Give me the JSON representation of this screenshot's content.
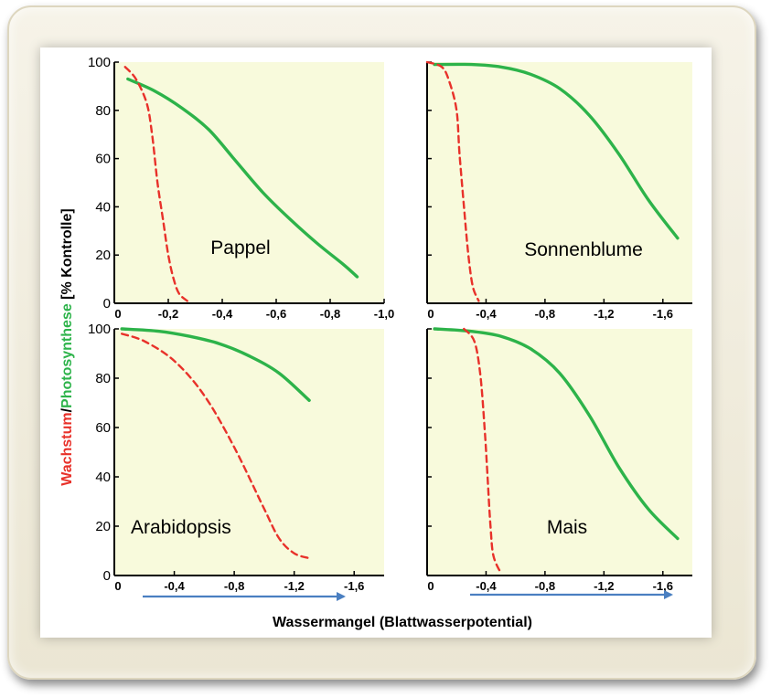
{
  "figure": {
    "ylabel_parts": [
      {
        "text": "Wachstum",
        "color": "#e8312a"
      },
      {
        "text": "/",
        "color": "#000000"
      },
      {
        "text": "Photosynthese",
        "color": "#2db34a"
      },
      {
        "text": " [% Kontrolle]",
        "color": "#000000"
      }
    ],
    "xlabel": "Wassermangel  (Blattwasserpotential)"
  },
  "colors": {
    "panel_bg": "#f8fadc",
    "photosynthese": "#2db34a",
    "wachstum": "#e8312a",
    "arrow": "#4a7fc1"
  },
  "chart_data": [
    {
      "type": "line",
      "label": "Pappel",
      "xlim": [
        0,
        -1.0
      ],
      "ylim": [
        0,
        100
      ],
      "xticks": [
        -0.2,
        -0.4,
        -0.6,
        -0.8,
        -1.0
      ],
      "xtick_labels": [
        "-0,2",
        "-0,4",
        "-0,6",
        "-0,8",
        "-1,0"
      ],
      "x_origin_label": "0",
      "yticks": [
        0,
        20,
        40,
        60,
        80,
        100
      ],
      "series": [
        {
          "key": "photosynthese",
          "style": "solid",
          "x": [
            -0.05,
            -0.15,
            -0.25,
            -0.35,
            -0.45,
            -0.55,
            -0.65,
            -0.75,
            -0.85,
            -0.9
          ],
          "y": [
            93,
            88,
            81,
            72,
            59,
            46,
            35,
            25,
            16,
            11
          ]
        },
        {
          "key": "wachstum",
          "style": "dashed",
          "x": [
            -0.04,
            -0.08,
            -0.12,
            -0.14,
            -0.16,
            -0.18,
            -0.2,
            -0.22,
            -0.24,
            -0.27
          ],
          "y": [
            98,
            93,
            83,
            70,
            50,
            35,
            20,
            10,
            4,
            1
          ]
        }
      ]
    },
    {
      "type": "line",
      "label": "Sonnenblume",
      "xlim": [
        0,
        -1.8
      ],
      "ylim": [
        0,
        100
      ],
      "xticks": [
        -0.4,
        -0.8,
        -1.2,
        -1.6
      ],
      "xtick_labels": [
        "-0,4",
        "-0,8",
        "-1,2",
        "-1,6"
      ],
      "x_origin_label": "0",
      "yticks": [],
      "series": [
        {
          "key": "photosynthese",
          "style": "solid",
          "x": [
            -0.05,
            -0.3,
            -0.5,
            -0.7,
            -0.9,
            -1.1,
            -1.3,
            -1.5,
            -1.7
          ],
          "y": [
            99,
            99,
            98,
            95,
            89,
            78,
            62,
            43,
            27
          ]
        },
        {
          "key": "wachstum",
          "style": "dashed",
          "x": [
            0,
            -0.1,
            -0.15,
            -0.2,
            -0.22,
            -0.25,
            -0.28,
            -0.31,
            -0.35
          ],
          "y": [
            100,
            98,
            92,
            80,
            62,
            40,
            20,
            7,
            1
          ]
        }
      ]
    },
    {
      "type": "line",
      "label": "Arabidopsis",
      "xlim": [
        0,
        -1.8
      ],
      "ylim": [
        0,
        100
      ],
      "xticks": [
        -0.4,
        -0.8,
        -1.2,
        -1.6
      ],
      "xtick_labels": [
        "-0,4",
        "-0,8",
        "-1,2",
        "-1,6"
      ],
      "x_origin_label": "0",
      "yticks": [
        0,
        20,
        40,
        60,
        80,
        100
      ],
      "series": [
        {
          "key": "photosynthese",
          "style": "solid",
          "x": [
            -0.05,
            -0.3,
            -0.5,
            -0.7,
            -0.9,
            -1.1,
            -1.3
          ],
          "y": [
            100,
            99,
            97,
            94,
            89,
            82,
            71
          ]
        },
        {
          "key": "wachstum",
          "style": "dashed",
          "x": [
            -0.05,
            -0.2,
            -0.4,
            -0.6,
            -0.8,
            -1.0,
            -1.1,
            -1.2,
            -1.3
          ],
          "y": [
            98,
            95,
            87,
            73,
            52,
            27,
            15,
            9,
            7
          ]
        }
      ]
    },
    {
      "type": "line",
      "label": "Mais",
      "xlim": [
        0,
        -1.8
      ],
      "ylim": [
        0,
        100
      ],
      "xticks": [
        -0.4,
        -0.8,
        -1.2,
        -1.6
      ],
      "xtick_labels": [
        "-0,4",
        "-0,8",
        "-1,2",
        "-1,6"
      ],
      "x_origin_label": "0",
      "yticks": [],
      "series": [
        {
          "key": "photosynthese",
          "style": "solid",
          "x": [
            -0.05,
            -0.3,
            -0.5,
            -0.7,
            -0.9,
            -1.1,
            -1.3,
            -1.5,
            -1.7
          ],
          "y": [
            100,
            99,
            97,
            92,
            82,
            65,
            44,
            27,
            15
          ]
        },
        {
          "key": "wachstum",
          "style": "dashed",
          "x": [
            -0.25,
            -0.32,
            -0.36,
            -0.39,
            -0.41,
            -0.43,
            -0.45,
            -0.5
          ],
          "y": [
            100,
            95,
            82,
            60,
            40,
            20,
            8,
            1
          ]
        }
      ]
    }
  ]
}
